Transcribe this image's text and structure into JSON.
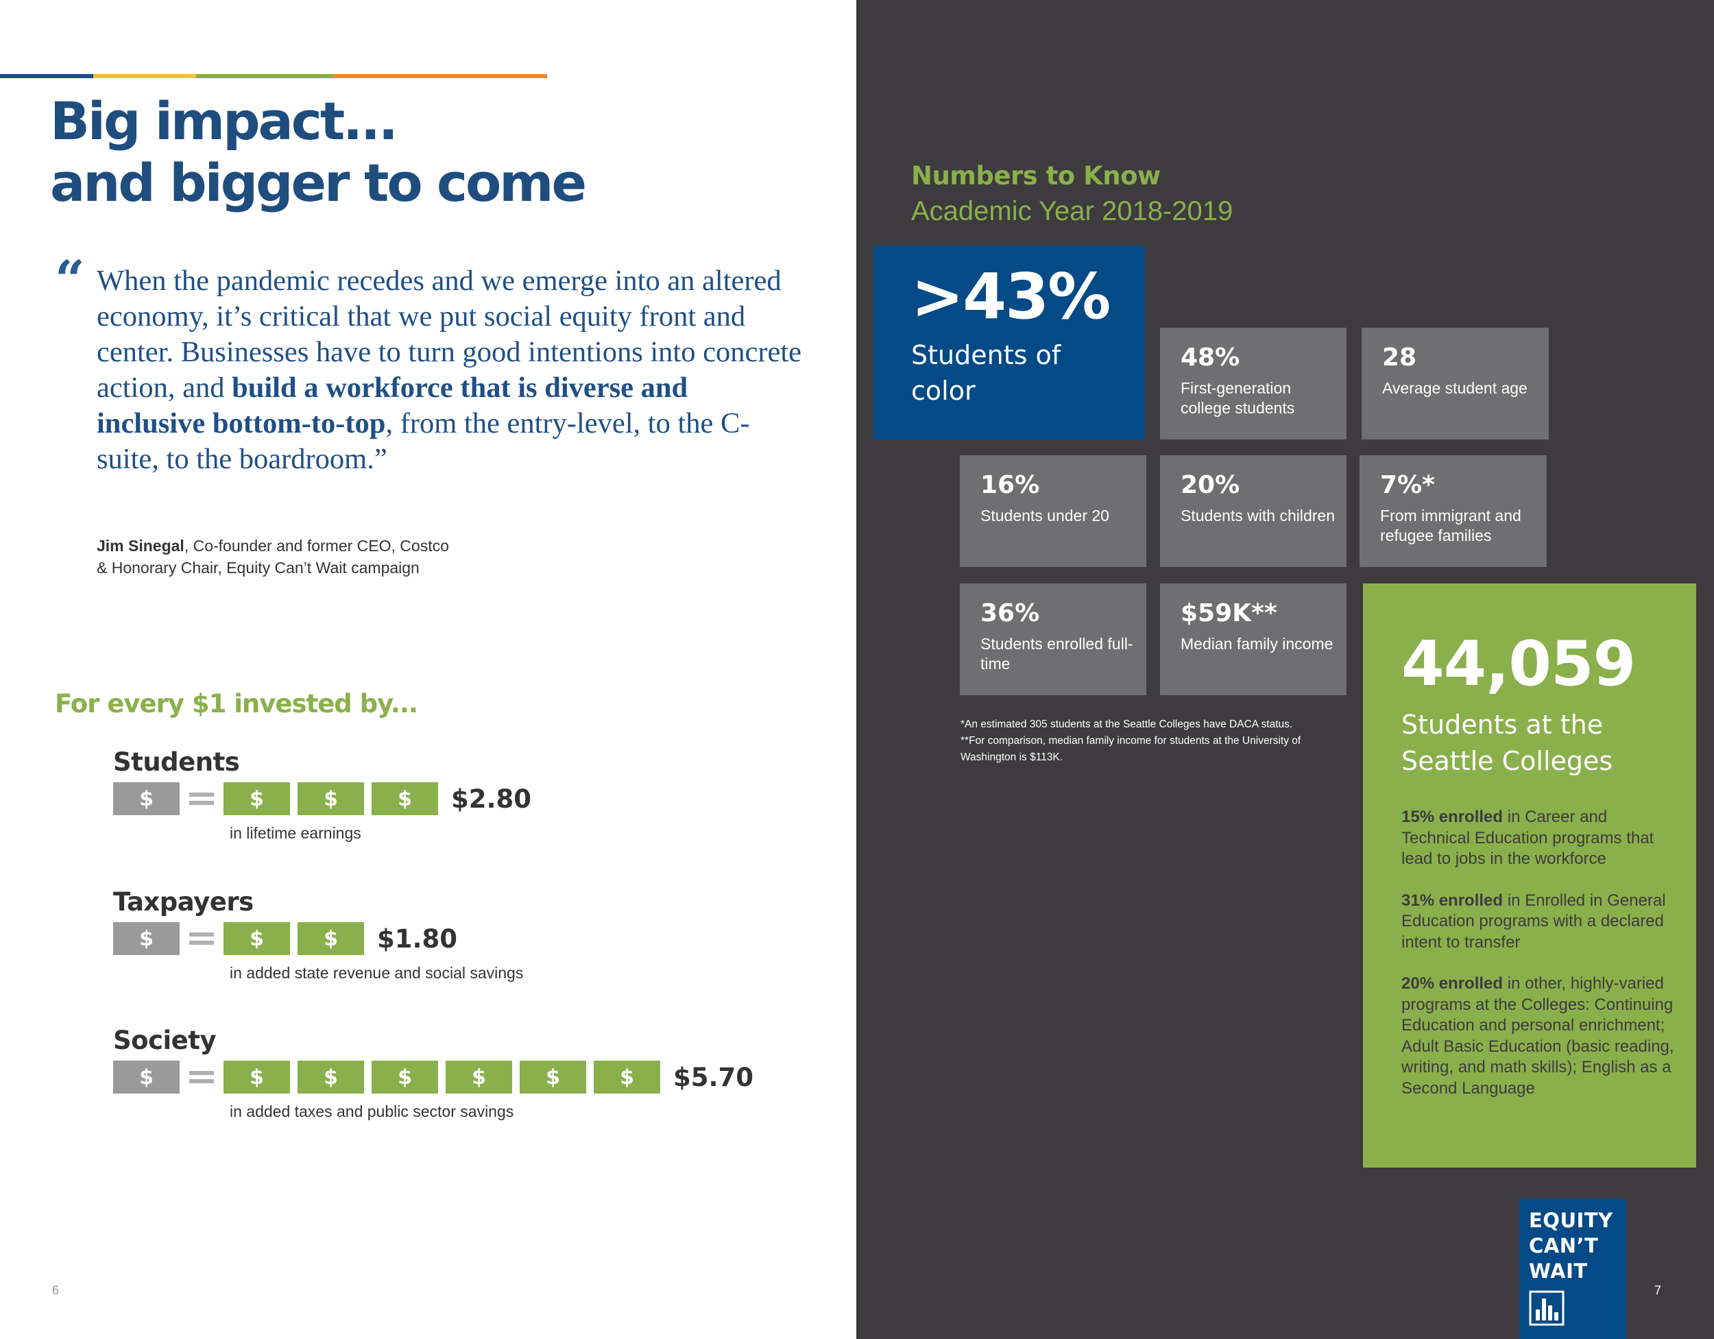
{
  "colors": {
    "navy": "#1e4d7e",
    "blue": "#044a86",
    "green": "#8ab04b",
    "gray_tile": "#6f6e70",
    "dark_bg": "#3d3b3e",
    "gold": "#f2c12e",
    "orange": "#f08a24"
  },
  "left": {
    "headline": [
      "Big impact...",
      "and bigger to come"
    ],
    "quote": {
      "mark": "“",
      "part1": "When the pandemic recedes and we emerge into an altered economy, it’s critical that we put social equity front and center. Businesses have to turn good intentions into concrete action, and ",
      "bold": "build a workforce that is diverse and inclusive bottom-to-top",
      "part2": ", from the entry-level, to the C-suite, to the boardroom.”"
    },
    "attribution": {
      "name": "Jim Sinegal",
      "line1": ", Co-founder and former CEO, Costco",
      "line2": "& Honorary Chair, Equity Can’t Wait campaign"
    },
    "roi_title": "For every $1 invested by...",
    "dollar_symbol": "$",
    "roi": [
      {
        "name": "Students",
        "return_dollars": 3,
        "amount": "$2.80",
        "caption": "in lifetime earnings"
      },
      {
        "name": "Taxpayers",
        "return_dollars": 2,
        "amount": "$1.80",
        "caption": "in added state revenue and social savings"
      },
      {
        "name": "Society",
        "return_dollars": 6,
        "amount": "$5.70",
        "caption": "in added taxes and public sector savings"
      }
    ],
    "page_number": "6"
  },
  "right": {
    "title": "Numbers to Know",
    "subtitle": "Academic Year 2018-2019",
    "big_stat": {
      "value": ">43%",
      "label": "Students of color"
    },
    "stats": [
      {
        "value": "48%",
        "label": "First-generation college students"
      },
      {
        "value": "28",
        "label": "Average student age"
      },
      {
        "value": "16%",
        "label": "Students under 20"
      },
      {
        "value": "20%",
        "label": "Students with children"
      },
      {
        "value": "7%*",
        "label": "From immigrant and refugee families"
      },
      {
        "value": "36%",
        "label": "Students enrolled full-time"
      },
      {
        "value": "$59K**",
        "label": "Median family income"
      }
    ],
    "footnotes": [
      "*An estimated 305 students at the Seattle Colleges have DACA status.",
      "**For comparison, median family income for students at the University of Washington is $113K."
    ],
    "green_stat": {
      "value": "44,059",
      "label": "Students at the Seattle Colleges",
      "details": [
        {
          "bold": "15% enrolled",
          "text": " in Career and Technical Education programs that lead to jobs in the workforce"
        },
        {
          "bold": "31% enrolled",
          "text": " in Enrolled in General Education programs with a declared intent to transfer"
        },
        {
          "bold": "20% enrolled",
          "text": " in other, highly-varied programs at the Colleges: Continuing Education and personal enrichment; Adult Basic Education (basic reading, writing, and math skills); English as a Second Language"
        }
      ]
    },
    "logo_text": [
      "EQUITY",
      "CAN’T",
      "WAIT"
    ],
    "page_number": "7"
  }
}
